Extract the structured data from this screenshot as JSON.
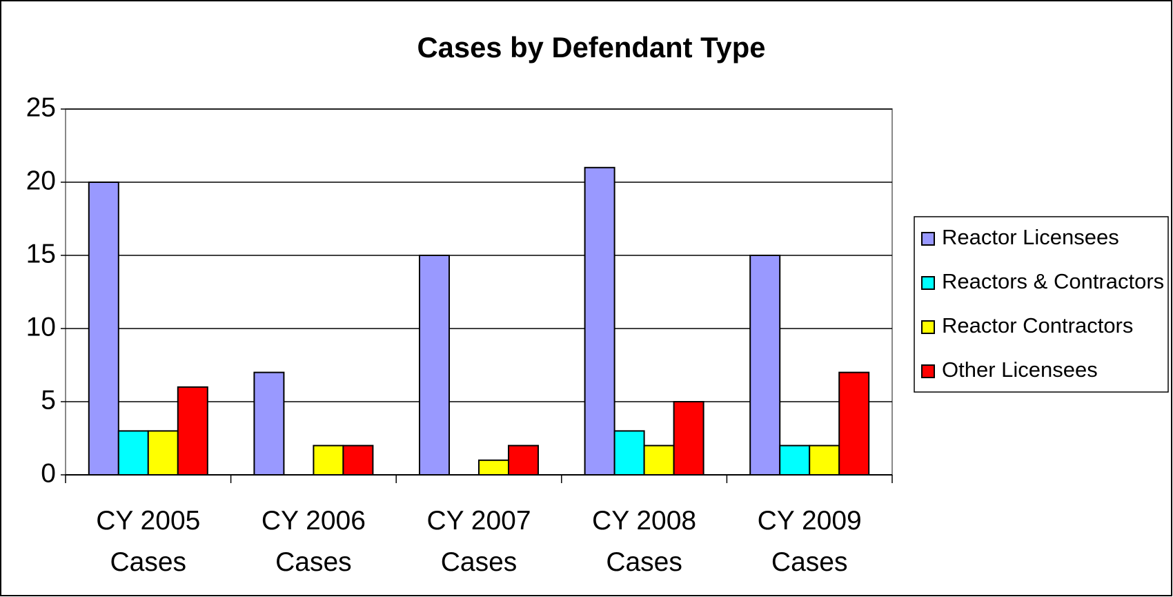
{
  "chart_data": {
    "type": "bar",
    "title": "Cases by Defendant Type",
    "categories": [
      "CY 2005 Cases",
      "CY 2006 Cases",
      "CY 2007 Cases",
      "CY 2008 Cases",
      "CY 2009 Cases"
    ],
    "series": [
      {
        "name": "Reactor Licensees",
        "color": "#9999ff",
        "values": [
          20,
          7,
          15,
          21,
          15
        ]
      },
      {
        "name": "Reactors & Contractors",
        "color": "#00ffff",
        "values": [
          3,
          0,
          0,
          3,
          2
        ]
      },
      {
        "name": "Reactor Contractors",
        "color": "#ffff00",
        "values": [
          3,
          2,
          1,
          2,
          2
        ]
      },
      {
        "name": "Other Licensees",
        "color": "#ff0000",
        "values": [
          6,
          2,
          2,
          5,
          7
        ]
      }
    ],
    "ylim": [
      0,
      25
    ],
    "yticks": [
      0,
      5,
      10,
      15,
      20,
      25
    ],
    "grid": true,
    "legend": "right"
  }
}
